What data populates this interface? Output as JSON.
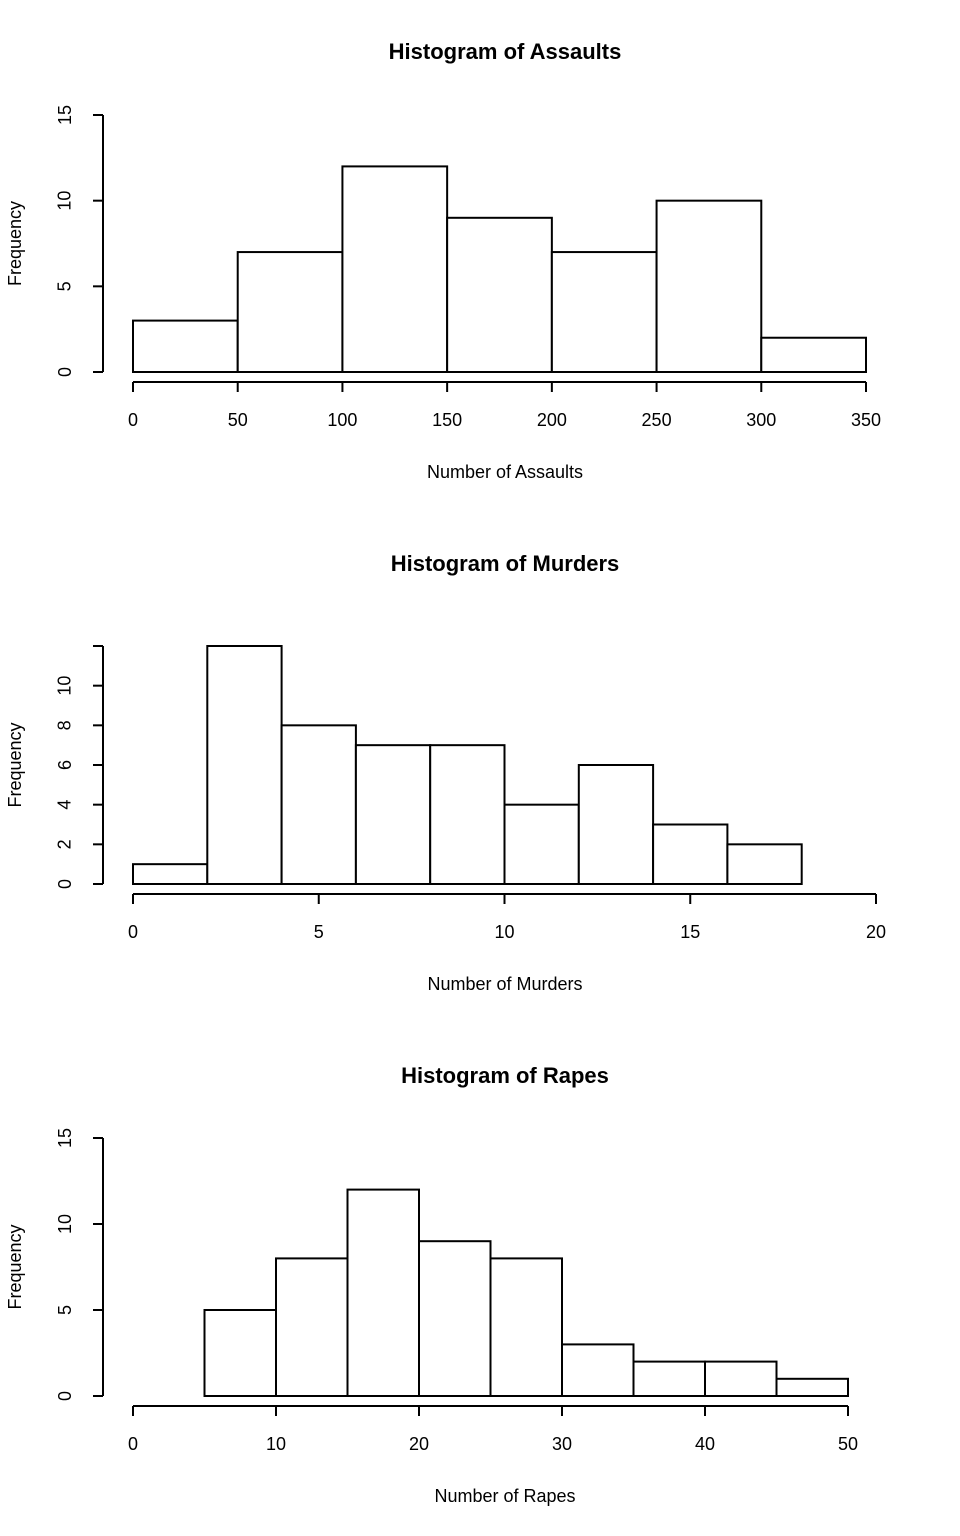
{
  "chart_data": [
    {
      "type": "histogram",
      "title": "Histogram of Assaults",
      "xlabel": "Number of Assaults",
      "ylabel": "Frequency",
      "bins": [
        0,
        50,
        100,
        150,
        200,
        250,
        300,
        350
      ],
      "counts": [
        3,
        7,
        12,
        9,
        7,
        10,
        2
      ],
      "color": "#ffffff",
      "xlim": [
        0,
        350
      ],
      "xticks": [
        0,
        50,
        100,
        150,
        200,
        250,
        300,
        350
      ],
      "ylim": [
        0,
        15
      ],
      "yticks": [
        0,
        5,
        10,
        15
      ]
    },
    {
      "type": "histogram",
      "title": "Histogram of Murders",
      "xlabel": "Number of Murders",
      "ylabel": "Frequency",
      "bins": [
        0,
        2,
        4,
        6,
        8,
        10,
        12,
        14,
        16,
        18
      ],
      "counts": [
        1,
        12,
        8,
        7,
        7,
        4,
        6,
        3,
        2
      ],
      "color": "#ffffff",
      "xlim": [
        0,
        20
      ],
      "xticks": [
        0,
        5,
        10,
        15,
        20
      ],
      "ylim": [
        0,
        12
      ],
      "yticks": [
        0,
        2,
        4,
        6,
        8,
        10
      ]
    },
    {
      "type": "histogram",
      "title": "Histogram of Rapes",
      "xlabel": "Number of Rapes",
      "ylabel": "Frequency",
      "bins": [
        5,
        10,
        15,
        20,
        25,
        30,
        35,
        40,
        45,
        50
      ],
      "counts": [
        5,
        8,
        12,
        9,
        8,
        3,
        2,
        2,
        1
      ],
      "color": "#ffffff",
      "xlim": [
        0,
        50
      ],
      "xticks": [
        0,
        10,
        20,
        30,
        40,
        50
      ],
      "ylim": [
        0,
        15
      ],
      "yticks": [
        0,
        5,
        10,
        15
      ]
    }
  ]
}
